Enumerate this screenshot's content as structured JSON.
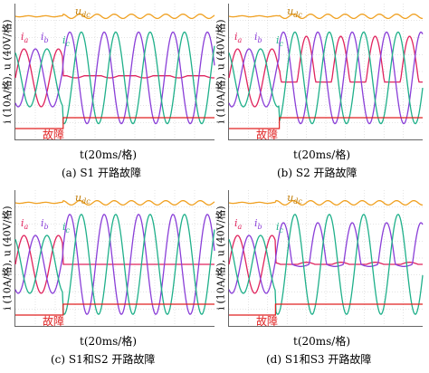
{
  "colors": {
    "ia": "#e0245e",
    "ib": "#8a3fd8",
    "ic": "#1fb08a",
    "udc": "#f0a020",
    "fault": "#e02020",
    "grid": "#c8c8c8"
  },
  "labels": {
    "udc_main": "u",
    "udc_sub": "dc",
    "ia_main": "i",
    "ia_sub": "a",
    "ib_main": "i",
    "ib_sub": "b",
    "ic_main": "i",
    "ic_sub": "c",
    "fault": "故障",
    "ylabel": "i (10A/格), u (40V/格)",
    "xlabel": "t(20ms/格)",
    "t_marker": "t"
  },
  "panels": [
    {
      "caption": "(a) S1 开路故障",
      "fault_at": 0.24,
      "mode": "s1"
    },
    {
      "caption": "(b) S2 开路故障",
      "fault_at": 0.26,
      "mode": "s2"
    },
    {
      "caption": "(c) S1和S2 开路故障",
      "fault_at": 0.24,
      "mode": "s12"
    },
    {
      "caption": "(d) S1和S3 开路故障",
      "fault_at": 0.24,
      "mode": "s13"
    }
  ]
}
